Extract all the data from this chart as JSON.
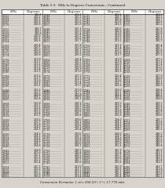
{
  "title": "Table 2-3.  Mils to Degrees Conversion—Continued",
  "col_headers": [
    "Mils",
    "Degrees",
    "Mils",
    "Degrees",
    "Mils",
    "Degrees",
    "Mils",
    "Degrees"
  ],
  "footer": "Conversion Formulas: 1 mⁱ= 056.25°; 1°= 17.778 mils",
  "background": "#d8d4cc",
  "text_color": "#111111",
  "border_color": "#444444",
  "rows": [
    [
      "3,555",
      "199.9",
      "3,644",
      "205.2",
      "3,735",
      "210.5",
      "4,160",
      "234.2"
    ],
    [
      "3,560",
      "200.2",
      "3,645",
      "205.3",
      "3,741",
      "210.7",
      "4,165",
      "234.5"
    ],
    [
      "3,564",
      "200.5",
      "3,648",
      "205.5",
      "3,742",
      "210.8",
      "4,168",
      "234.7"
    ],
    [
      "3,565",
      "200.6",
      "3,650",
      "205.6",
      "3,745",
      "211.0",
      "4,170",
      "234.8"
    ],
    [
      "3,570",
      "200.9",
      "3,655",
      "205.9",
      "3,750",
      "211.3",
      "4,175",
      "235.2"
    ],
    [
      "",
      "",
      "",
      "",
      "",
      "",
      "",
      ""
    ],
    [
      "3,555",
      "199.7",
      "3,640",
      "205.1",
      "3,734",
      "210.6",
      "4,185",
      "235.8"
    ],
    [
      "3,556",
      "199.7",
      "3,645",
      "205.3",
      "3,740",
      "210.9",
      "4,186",
      "235.8"
    ],
    [
      "3,558",
      "199.9",
      "3,647",
      "205.4",
      "3,742",
      "211.0",
      "4,188",
      "236.0"
    ],
    [
      "3,560",
      "200.0",
      "3,648",
      "205.5",
      "3,744",
      "211.0",
      "4,190",
      "236.1"
    ],
    [
      "3,562",
      "200.1",
      "3,650",
      "205.6",
      "3,745",
      "211.1",
      "4,192",
      "236.2"
    ],
    [
      "3,564",
      "200.2",
      "3,652",
      "205.7",
      "3,748",
      "211.2",
      "4,195",
      "236.3"
    ],
    [
      "",
      "",
      "",
      "",
      "",
      "",
      "",
      ""
    ],
    [
      "3,566",
      "200.4",
      "3,654",
      "205.8",
      "3,750",
      "211.3",
      "4,197",
      "236.4"
    ],
    [
      "3,568",
      "200.5",
      "3,656",
      "205.9",
      "3,752",
      "211.4",
      "4,200",
      "236.7"
    ],
    [
      "3,570",
      "200.6",
      "3,658",
      "206.1",
      "3,754",
      "211.5",
      "4,202",
      "236.8"
    ],
    [
      "3,572",
      "200.8",
      "3,660",
      "206.2",
      "3,756",
      "211.6",
      "4,204",
      "236.9"
    ],
    [
      "3,574",
      "200.9",
      "3,662",
      "206.3",
      "3,758",
      "211.7",
      "4,206",
      "237.1"
    ],
    [
      "",
      "",
      "",
      "",
      "",
      "",
      "",
      ""
    ],
    [
      "3,576",
      "201.0",
      "3,664",
      "206.4",
      "3,760",
      "211.8",
      "4,208",
      "237.2"
    ],
    [
      "3,578",
      "201.1",
      "3,666",
      "206.5",
      "3,762",
      "211.9",
      "4,210",
      "237.2"
    ],
    [
      "3,580",
      "201.2",
      "3,668",
      "206.6",
      "3,764",
      "212.0",
      "4,212",
      "237.4"
    ],
    [
      "3,582",
      "201.3",
      "3,670",
      "206.8",
      "3,766",
      "212.1",
      "4,214",
      "237.5"
    ],
    [
      "3,584",
      "201.4",
      "3,672",
      "206.9",
      "3,768",
      "212.2",
      "4,216",
      "237.6"
    ],
    [
      "3,586",
      "201.5",
      "3,674",
      "207.0",
      "3,770",
      "212.3",
      "4,218",
      "237.7"
    ],
    [
      "",
      "",
      "",
      "",
      "",
      "",
      "",
      ""
    ],
    [
      "3,588",
      "201.6",
      "3,676",
      "207.1",
      "3,772",
      "212.4",
      "4,220",
      "237.9"
    ],
    [
      "3,590",
      "201.7",
      "3,678",
      "207.2",
      "3,774",
      "212.5",
      "4,222",
      "238.0"
    ],
    [
      "3,592",
      "201.9",
      "3,680",
      "207.3",
      "3,776",
      "212.6",
      "4,224",
      "238.1"
    ],
    [
      "3,594",
      "202.0",
      "3,682",
      "207.4",
      "3,778",
      "212.7",
      "4,226",
      "238.2"
    ],
    [
      "3,596",
      "202.1",
      "3,684",
      "207.5",
      "3,780",
      "212.9",
      "4,228",
      "238.3"
    ],
    [
      "",
      "",
      "",
      "",
      "",
      "",
      "",
      ""
    ],
    [
      "3,598",
      "202.2",
      "3,686",
      "207.6",
      "3,782",
      "213.0",
      "4,230",
      "238.4"
    ],
    [
      "3,600",
      "202.5",
      "3,688",
      "207.7",
      "3,784",
      "213.1",
      "4,232",
      "238.5"
    ],
    [
      "3,602",
      "202.6",
      "3,690",
      "207.9",
      "3,786",
      "213.2",
      "4,234",
      "238.7"
    ],
    [
      "3,604",
      "202.7",
      "3,692",
      "208.0",
      "3,788",
      "213.3",
      "4,236",
      "238.8"
    ],
    [
      "3,606",
      "202.8",
      "3,694",
      "208.1",
      "3,790",
      "213.4",
      "4,238",
      "238.9"
    ],
    [
      "",
      "",
      "",
      "",
      "",
      "",
      "",
      ""
    ],
    [
      "3,608",
      "202.9",
      "3,696",
      "208.2",
      "3,792",
      "213.5",
      "4,240",
      "239.1"
    ],
    [
      "3,610",
      "203.1",
      "3,698",
      "208.3",
      "3,794",
      "213.6",
      "4,242",
      "239.2"
    ],
    [
      "3,612",
      "203.2",
      "3,700",
      "208.5",
      "3,796",
      "213.7",
      "4,244",
      "239.3"
    ],
    [
      "3,614",
      "203.3",
      "3,702",
      "208.6",
      "3,798",
      "213.8",
      "4,246",
      "239.4"
    ],
    [
      "3,616",
      "203.4",
      "3,704",
      "208.7",
      "3,800",
      "213.9",
      "4,248",
      "239.5"
    ],
    [
      "3,618",
      "203.5",
      "3,706",
      "208.8",
      "3,800",
      "213.9",
      "4,250",
      "239.6"
    ],
    [
      "",
      "",
      "",
      "",
      "",
      "",
      "",
      ""
    ],
    [
      "3,620",
      "203.6",
      "3,708",
      "209.0",
      "3,802",
      "214.0",
      "4,252",
      "239.7"
    ],
    [
      "3,622",
      "203.7",
      "3,710",
      "209.1",
      "3,804",
      "214.1",
      "4,254",
      "239.8"
    ],
    [
      "3,624",
      "203.9",
      "3,712",
      "209.2",
      "3,806",
      "214.2",
      "4,256",
      "239.9"
    ],
    [
      "3,626",
      "204.0",
      "3,714",
      "209.3",
      "3,808",
      "214.3",
      "4,258",
      "240.1"
    ],
    [
      "3,628",
      "204.1",
      "3,716",
      "209.4",
      "3,810",
      "214.5",
      "4,260",
      "240.2"
    ],
    [
      "",
      "",
      "",
      "",
      "",
      "",
      "",
      ""
    ],
    [
      "3,630",
      "204.2",
      "3,718",
      "209.6",
      "3,812",
      "214.6",
      "4,262",
      "240.3"
    ],
    [
      "3,632",
      "204.3",
      "3,720",
      "209.7",
      "3,814",
      "214.7",
      "4,264",
      "240.4"
    ],
    [
      "3,634",
      "204.4",
      "3,722",
      "209.8",
      "3,816",
      "214.8",
      "4,266",
      "240.5"
    ],
    [
      "3,636",
      "204.6",
      "3,724",
      "209.9",
      "3,818",
      "214.9",
      "4,268",
      "240.6"
    ],
    [
      "3,638",
      "204.7",
      "3,726",
      "210.0",
      "3,820",
      "215.0",
      "4,270",
      "240.7"
    ],
    [
      "3,640",
      "204.8",
      "3,728",
      "210.1",
      "3,822",
      "215.2",
      "4,272",
      "240.8"
    ],
    [
      "",
      "",
      "",
      "",
      "",
      "",
      "",
      ""
    ],
    [
      "3,642",
      "204.9",
      "3,730",
      "210.3",
      "3,824",
      "215.3",
      "4,274",
      "240.9"
    ],
    [
      "3,644",
      "205.0",
      "3,732",
      "210.4",
      "3,826",
      "215.4",
      "4,276",
      "241.1"
    ],
    [
      "3,646",
      "205.1",
      "3,734",
      "210.5",
      "3,828",
      "215.5",
      "4,278",
      "241.2"
    ],
    [
      "3,648",
      "205.2",
      "3,736",
      "210.6",
      "3,830",
      "215.6",
      "4,280",
      "241.3"
    ],
    [
      "3,650",
      "205.3",
      "3,738",
      "210.7",
      "3,832",
      "215.7",
      "4,282",
      "241.4"
    ],
    [
      "3,652",
      "205.4",
      "3,740",
      "210.8",
      "3,834",
      "215.8",
      "4,284",
      "241.5"
    ],
    [
      "",
      "",
      "",
      "",
      "",
      "",
      "",
      ""
    ],
    [
      "3,654",
      "205.5",
      "3,742",
      "211.0",
      "3,836",
      "215.9",
      "4,286",
      "241.7"
    ],
    [
      "3,656",
      "205.6",
      "3,744",
      "211.1",
      "3,838",
      "216.0",
      "4,288",
      "241.8"
    ],
    [
      "3,658",
      "205.7",
      "3,746",
      "211.2",
      "3,840",
      "216.1",
      "4,290",
      "241.9"
    ],
    [
      "3,660",
      "205.9",
      "3,748",
      "211.3",
      "3,842",
      "216.2",
      "4,292",
      "242.0"
    ],
    [
      "3,662",
      "206.0",
      "3,750",
      "211.4",
      "3,844",
      "216.4",
      "4,294",
      "242.1"
    ]
  ]
}
